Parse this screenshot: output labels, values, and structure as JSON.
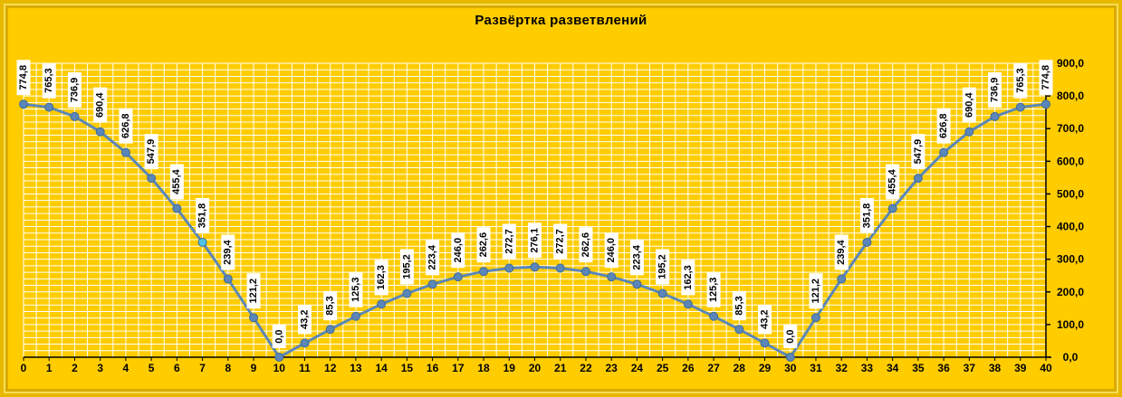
{
  "chart_data": {
    "type": "line",
    "title": "Развёртка  разветвлений",
    "x": [
      0,
      1,
      2,
      3,
      4,
      5,
      6,
      7,
      8,
      9,
      10,
      11,
      12,
      13,
      14,
      15,
      16,
      17,
      18,
      19,
      20,
      21,
      22,
      23,
      24,
      25,
      26,
      27,
      28,
      29,
      30,
      31,
      32,
      33,
      34,
      35,
      36,
      37,
      38,
      39,
      40
    ],
    "values": [
      774.8,
      765.3,
      736.9,
      690.4,
      626.8,
      547.9,
      455.4,
      351.8,
      239.4,
      121.2,
      0.0,
      43.2,
      85.3,
      125.3,
      162.3,
      195.2,
      223.4,
      246.0,
      262.6,
      272.7,
      276.1,
      272.7,
      262.6,
      246.0,
      223.4,
      195.2,
      162.3,
      125.3,
      85.3,
      43.2,
      0.0,
      121.2,
      239.4,
      351.8,
      455.4,
      547.9,
      626.8,
      690.4,
      736.9,
      765.3,
      774.8
    ],
    "data_labels": [
      "774,8",
      "765,3",
      "736,9",
      "690,4",
      "626,8",
      "547,9",
      "455,4",
      "351,8",
      "239,4",
      "121,2",
      "0,0",
      "43,2",
      "85,3",
      "125,3",
      "162,3",
      "195,2",
      "223,4",
      "246,0",
      "262,6",
      "272,7",
      "276,1",
      "272,7",
      "262,6",
      "246,0",
      "223,4",
      "195,2",
      "162,3",
      "125,3",
      "85,3",
      "43,2",
      "0,0",
      "121,2",
      "239,4",
      "351,8",
      "455,4",
      "547,9",
      "626,8",
      "690,4",
      "736,9",
      "765,3",
      "774,8"
    ],
    "xlim": [
      0,
      40
    ],
    "ylim": [
      0,
      900
    ],
    "y_ticks": [
      "0,0",
      "100,0",
      "200,0",
      "300,0",
      "400,0",
      "500,0",
      "600,0",
      "700,0",
      "800,0",
      "900,0"
    ],
    "y_axis_side": "right",
    "grid": true,
    "colors": {
      "background": "#ffcc00",
      "grid": "#ffffff",
      "line": "#5b87b8",
      "marker": "#5b87b8",
      "highlight_marker": "#4fc3e8",
      "label_box": "#ffffff"
    },
    "highlight_index": 7
  }
}
